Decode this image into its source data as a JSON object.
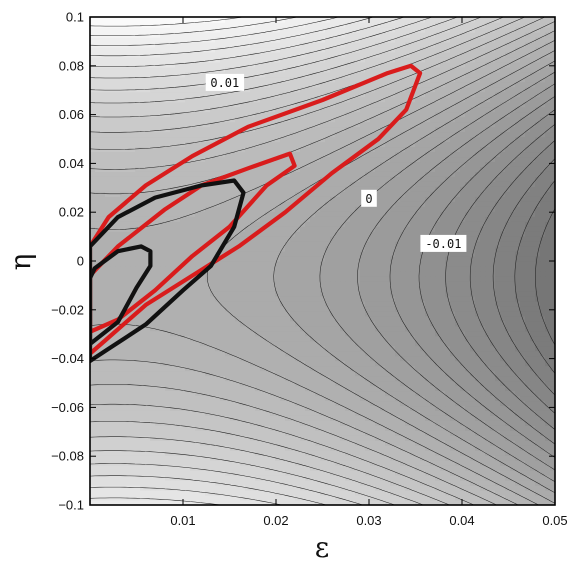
{
  "chart_data": {
    "type": "contour",
    "title": "",
    "xlabel": "ε",
    "ylabel": "η",
    "xlim": [
      0,
      0.05
    ],
    "ylim": [
      -0.1,
      0.1
    ],
    "x_ticks": [
      "0.01",
      "0.02",
      "0.03",
      "0.04",
      "0.05"
    ],
    "y_ticks": [
      "-0.1",
      "-0.08",
      "-0.06",
      "-0.04",
      "-0.02",
      "0",
      "0.02",
      "0.04",
      "0.06",
      "0.08",
      "0.1"
    ],
    "grid": false,
    "background_shading": "grayscale filled contours of a saddle-shaped field, lightest top-right, darkest bottom-right",
    "contour_labels": [
      {
        "text": "0.01",
        "x": 0.0145,
        "y": 0.073
      },
      {
        "text": "0",
        "x": 0.03,
        "y": 0.0255
      },
      {
        "text": "-0.01",
        "x": 0.038,
        "y": 0.007
      }
    ],
    "regions": [
      {
        "color": "#d91c1c",
        "polygon": [
          [
            0.0,
            -0.038
          ],
          [
            0.0015,
            -0.033
          ],
          [
            0.006,
            -0.018
          ],
          [
            0.011,
            -0.006
          ],
          [
            0.016,
            0.006
          ],
          [
            0.021,
            0.02
          ],
          [
            0.026,
            0.036
          ],
          [
            0.031,
            0.05
          ],
          [
            0.034,
            0.062
          ],
          [
            0.0355,
            0.077
          ],
          [
            0.0345,
            0.08
          ],
          [
            0.032,
            0.077
          ],
          [
            0.025,
            0.066
          ],
          [
            0.017,
            0.055
          ],
          [
            0.011,
            0.043
          ],
          [
            0.006,
            0.031
          ],
          [
            0.002,
            0.018
          ],
          [
            0.0,
            0.006
          ]
        ]
      },
      {
        "color": "#d91c1c",
        "polygon": [
          [
            0.0,
            -0.006
          ],
          [
            0.003,
            0.006
          ],
          [
            0.008,
            0.021
          ],
          [
            0.012,
            0.031
          ],
          [
            0.017,
            0.038
          ],
          [
            0.0215,
            0.044
          ],
          [
            0.022,
            0.039
          ],
          [
            0.019,
            0.031
          ],
          [
            0.015,
            0.014
          ],
          [
            0.011,
            0.002
          ],
          [
            0.007,
            -0.012
          ],
          [
            0.003,
            -0.024
          ],
          [
            0.0,
            -0.029
          ]
        ]
      },
      {
        "color": "#111111",
        "polygon": [
          [
            0.0,
            -0.041
          ],
          [
            0.002,
            -0.036
          ],
          [
            0.006,
            -0.026
          ],
          [
            0.01,
            -0.012
          ],
          [
            0.013,
            -0.002
          ],
          [
            0.0155,
            0.014
          ],
          [
            0.0165,
            0.028
          ],
          [
            0.0155,
            0.033
          ],
          [
            0.012,
            0.031
          ],
          [
            0.007,
            0.026
          ],
          [
            0.003,
            0.018
          ],
          [
            0.0,
            0.006
          ]
        ]
      },
      {
        "color": "#111111",
        "polygon": [
          [
            0.0,
            -0.034
          ],
          [
            0.003,
            -0.025
          ],
          [
            0.005,
            -0.011
          ],
          [
            0.0065,
            -0.002
          ],
          [
            0.0065,
            0.004
          ],
          [
            0.0055,
            0.006
          ],
          [
            0.003,
            0.004
          ],
          [
            0.0005,
            -0.003
          ],
          [
            0.0,
            -0.007
          ]
        ]
      }
    ]
  }
}
